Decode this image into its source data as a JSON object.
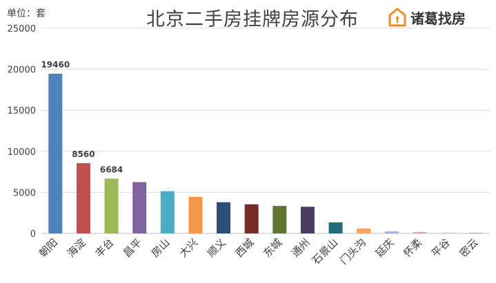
{
  "unit_label": "单位：套",
  "title": "北京二手房挂牌房源分布",
  "brand": {
    "name": "诸葛找房",
    "icon": "house-logo-icon",
    "color": "#f08a1c"
  },
  "chart_data": {
    "type": "bar",
    "title": "北京二手房挂牌房源分布",
    "ylabel": "单位：套",
    "xlabel": "",
    "ylim": [
      0,
      25000
    ],
    "yticks": [
      0,
      5000,
      10000,
      15000,
      20000,
      25000
    ],
    "grid": true,
    "categories": [
      "朝阳",
      "海淀",
      "丰台",
      "昌平",
      "房山",
      "大兴",
      "顺义",
      "西城",
      "东城",
      "通州",
      "石景山",
      "门头沟",
      "延庆",
      "怀柔",
      "平谷",
      "密云"
    ],
    "values": [
      19460,
      8560,
      6684,
      6250,
      5150,
      4450,
      3800,
      3550,
      3350,
      3250,
      1350,
      600,
      250,
      180,
      120,
      100
    ],
    "data_labels": [
      "19460",
      "8560",
      "6684",
      "",
      "",
      "",
      "",
      "",
      "",
      "",
      "",
      "",
      "",
      "",
      "",
      ""
    ],
    "colors": [
      "#4f81bd",
      "#c0504d",
      "#9bbb59",
      "#8064a2",
      "#4bacc6",
      "#f79646",
      "#2c4d75",
      "#772c2a",
      "#5f7530",
      "#4d3b62",
      "#276a7c",
      "#f4a460",
      "#a5b4d8",
      "#d8a7a7",
      "#cfdcb0",
      "#c2b7d3"
    ]
  }
}
